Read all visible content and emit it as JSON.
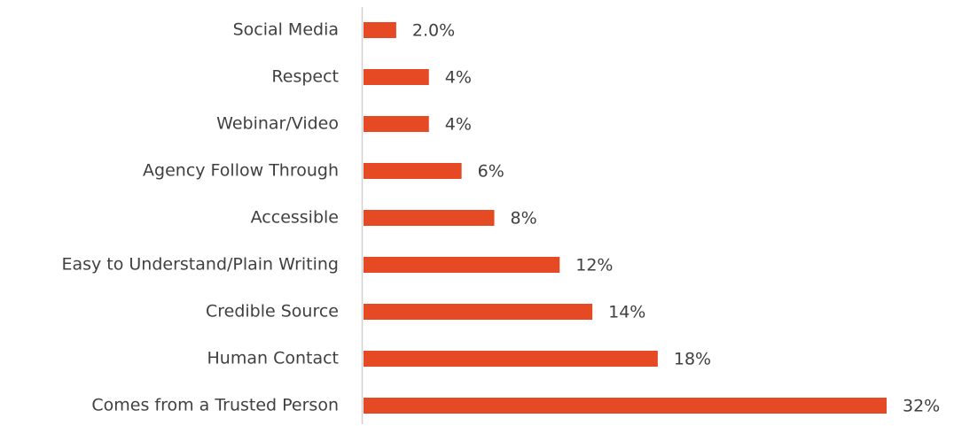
{
  "chart_data": {
    "type": "bar",
    "orientation": "horizontal",
    "categories": [
      "Social Media",
      "Respect",
      "Webinar/Video",
      "Agency Follow Through",
      "Accessible",
      "Easy to Understand/Plain Writing",
      "Credible Source",
      "Human Contact",
      "Comes from a Trusted Person"
    ],
    "values": [
      2,
      4,
      4,
      6,
      8,
      12,
      14,
      18,
      32
    ],
    "value_labels": [
      "2.0%",
      "4%",
      "4%",
      "6%",
      "8%",
      "12%",
      "14%",
      "18%",
      "32%"
    ],
    "color": "#e64a25"
  }
}
